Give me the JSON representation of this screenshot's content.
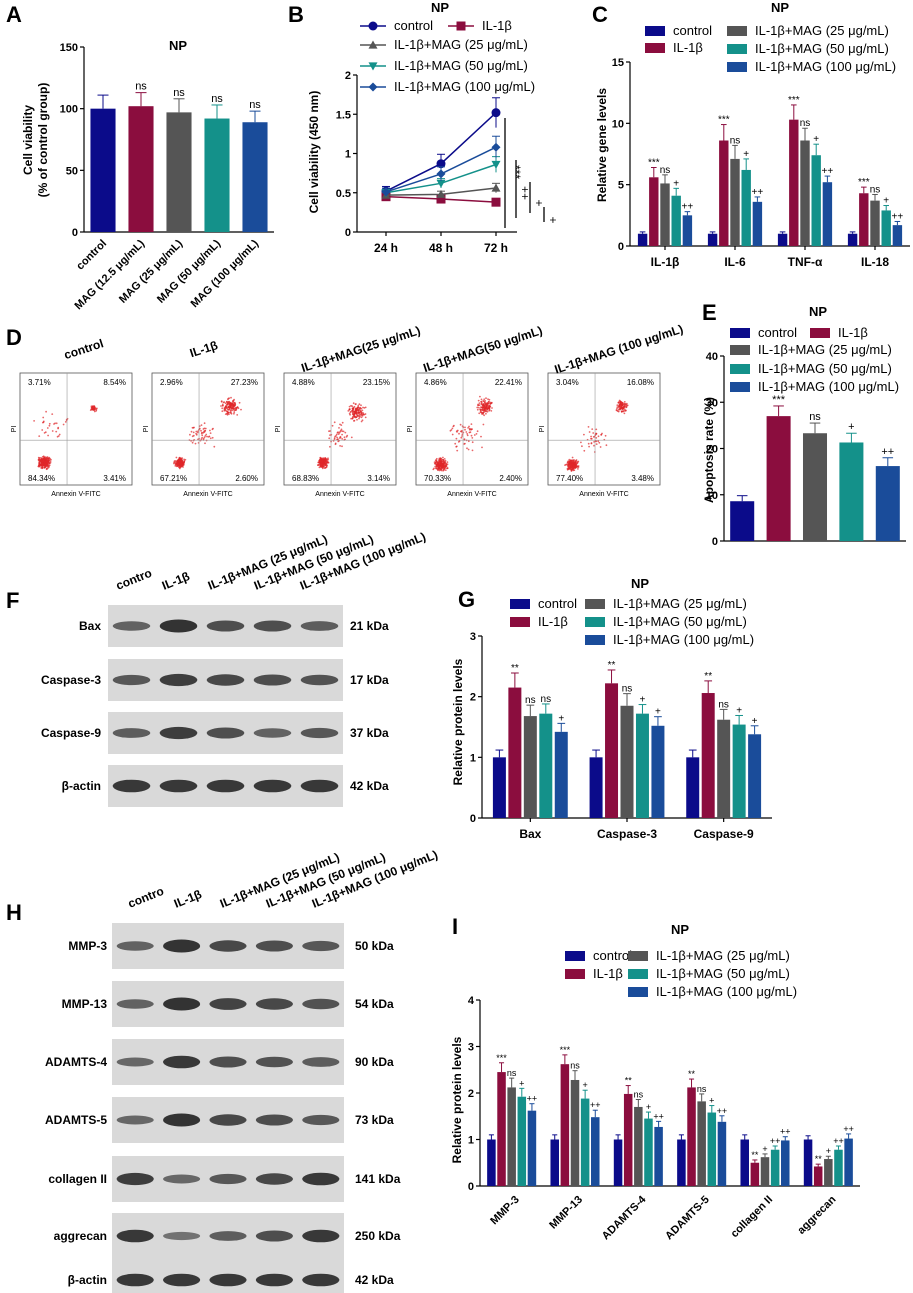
{
  "colors": {
    "control": "#0b0b8a",
    "il1b": "#8b0d3e",
    "mag25": "#555555",
    "mag50": "#14918a",
    "mag100": "#1a4c9a",
    "mag12_5": "#8b0d3e",
    "blot_bg": "#d9d9d9",
    "band": "#2a2a2a",
    "dot": "#e0262a"
  },
  "panels": {
    "A": {
      "letter": "A",
      "title": "NP"
    },
    "B": {
      "letter": "B",
      "title": "NP"
    },
    "C": {
      "letter": "C",
      "title": "NP"
    },
    "D": {
      "letter": "D"
    },
    "E": {
      "letter": "E",
      "title": "NP"
    },
    "F": {
      "letter": "F"
    },
    "G": {
      "letter": "G",
      "title": "NP"
    },
    "H": {
      "letter": "H"
    },
    "I": {
      "letter": "I",
      "title": "NP"
    }
  },
  "chart_data": [
    {
      "id": "A",
      "type": "bar",
      "title": "NP",
      "ylabel": "Cell viability (% of control group)",
      "ylabel_lines": [
        "Cell viability",
        "(% of control group)"
      ],
      "ylim": [
        0,
        150
      ],
      "yticks": [
        0,
        50,
        100,
        150
      ],
      "categories": [
        "control",
        "MAG (12.5 μg/mL)",
        "MAG (25 μg/mL)",
        "MAG (50 μg/mL)",
        "MAG (100 μg/mL)"
      ],
      "values": [
        100,
        102,
        97,
        92,
        89
      ],
      "errors": [
        11,
        11,
        11,
        11,
        9
      ],
      "annotations": [
        "",
        "ns",
        "ns",
        "ns",
        "ns"
      ]
    },
    {
      "id": "B",
      "type": "line",
      "title": "NP",
      "ylabel": "Cell viability (450 nm)",
      "ylim": [
        0,
        2.0
      ],
      "yticks": [
        0,
        0.5,
        1.0,
        1.5,
        2.0
      ],
      "x": [
        "24 h",
        "48 h",
        "72 h"
      ],
      "legend": [
        "control",
        "IL-1β",
        "IL-1β+MAG (25 μg/mL)",
        "IL-1β+MAG (50 μg/mL)",
        "IL-1β+MAG (100 μg/mL)"
      ],
      "series": [
        {
          "name": "control",
          "values": [
            0.52,
            0.87,
            1.52
          ],
          "errors": [
            0.06,
            0.12,
            0.19
          ]
        },
        {
          "name": "IL-1β",
          "values": [
            0.45,
            0.42,
            0.38
          ],
          "errors": [
            0.03,
            0.03,
            0.03
          ]
        },
        {
          "name": "IL-1β+MAG (25 μg/mL)",
          "values": [
            0.47,
            0.48,
            0.56
          ],
          "errors": [
            0.03,
            0.04,
            0.06
          ]
        },
        {
          "name": "IL-1β+MAG (50 μg/mL)",
          "values": [
            0.5,
            0.62,
            0.86
          ],
          "errors": [
            0.04,
            0.06,
            0.1
          ]
        },
        {
          "name": "IL-1β+MAG (100 μg/mL)",
          "values": [
            0.51,
            0.74,
            1.08
          ],
          "errors": [
            0.05,
            0.09,
            0.14
          ]
        }
      ],
      "significance": [
        "***",
        "++",
        "+",
        "+",
        "+"
      ]
    },
    {
      "id": "C",
      "type": "bar",
      "title": "NP",
      "ylabel": "Relative gene levels",
      "ylim": [
        0,
        15
      ],
      "yticks": [
        0,
        5,
        10,
        15
      ],
      "categories": [
        "IL-1β",
        "IL-6",
        "TNF-α",
        "IL-18"
      ],
      "legend": [
        "control",
        "IL-1β",
        "IL-1β+MAG (25 μg/mL)",
        "IL-1β+MAG (50 μg/mL)",
        "IL-1β+MAG (100 μg/mL)"
      ],
      "series": [
        {
          "name": "control",
          "values": [
            1,
            1,
            1,
            1
          ],
          "errors": [
            0.15,
            0.15,
            0.15,
            0.15
          ],
          "labels": [
            "",
            "",
            "",
            ""
          ]
        },
        {
          "name": "IL-1β",
          "values": [
            5.6,
            8.6,
            10.3,
            4.3
          ],
          "errors": [
            0.8,
            1.3,
            1.2,
            0.5
          ],
          "labels": [
            "***",
            "***",
            "***",
            "***"
          ]
        },
        {
          "name": "IL-1β+MAG (25 μg/mL)",
          "values": [
            5.1,
            7.1,
            8.6,
            3.7
          ],
          "errors": [
            0.7,
            1.1,
            1.0,
            0.5
          ],
          "labels": [
            "ns",
            "ns",
            "ns",
            "ns"
          ]
        },
        {
          "name": "IL-1β+MAG (50 μg/mL)",
          "values": [
            4.1,
            6.2,
            7.4,
            2.9
          ],
          "errors": [
            0.6,
            0.9,
            0.9,
            0.4
          ],
          "labels": [
            "+",
            "+",
            "+",
            "+"
          ]
        },
        {
          "name": "IL-1β+MAG (100 μg/mL)",
          "values": [
            2.5,
            3.6,
            5.2,
            1.7
          ],
          "errors": [
            0.3,
            0.4,
            0.5,
            0.3
          ],
          "labels": [
            "++",
            "++",
            "++",
            "++"
          ]
        }
      ]
    },
    {
      "id": "E",
      "type": "bar",
      "title": "NP",
      "ylabel": "Apoptosis rate (%)",
      "ylim": [
        0,
        40
      ],
      "yticks": [
        0,
        10,
        20,
        30,
        40
      ],
      "categories": [
        "control",
        "IL-1β",
        "IL-1β+MAG (25 μg/mL)",
        "IL-1β+MAG (50 μg/mL)",
        "IL-1β+MAG (100 μg/mL)"
      ],
      "legend": [
        "control",
        "IL-1β",
        "IL-1β+MAG (25 μg/mL)",
        "IL-1β+MAG (50 μg/mL)",
        "IL-1β+MAG (100 μg/mL)"
      ],
      "values": [
        8.6,
        27,
        23.3,
        21.3,
        16.2
      ],
      "errors": [
        1.2,
        2.2,
        2.2,
        2.0,
        1.8
      ],
      "annotations": [
        "",
        "***",
        "ns",
        "+",
        "++"
      ]
    },
    {
      "id": "G",
      "type": "bar",
      "title": "NP",
      "ylabel": "Relative protein levels",
      "ylim": [
        0,
        3
      ],
      "yticks": [
        0,
        1,
        2,
        3
      ],
      "categories": [
        "Bax",
        "Caspase-3",
        "Caspase-9"
      ],
      "legend": [
        "control",
        "IL-1β",
        "IL-1β+MAG (25 μg/mL)",
        "IL-1β+MAG (50 μg/mL)",
        "IL-1β+MAG (100 μg/mL)"
      ],
      "series": [
        {
          "name": "control",
          "values": [
            1,
            1,
            1
          ],
          "errors": [
            0.12,
            0.12,
            0.12
          ],
          "labels": [
            "",
            "",
            ""
          ]
        },
        {
          "name": "IL-1β",
          "values": [
            2.15,
            2.22,
            2.06
          ],
          "errors": [
            0.24,
            0.22,
            0.2
          ],
          "labels": [
            "**",
            "**",
            "**"
          ]
        },
        {
          "name": "IL-1β+MAG (25 μg/mL)",
          "values": [
            1.68,
            1.85,
            1.62
          ],
          "errors": [
            0.18,
            0.2,
            0.17
          ],
          "labels": [
            "ns",
            "ns",
            "ns"
          ]
        },
        {
          "name": "IL-1β+MAG (50 μg/mL)",
          "values": [
            1.72,
            1.72,
            1.54
          ],
          "errors": [
            0.16,
            0.15,
            0.15
          ],
          "labels": [
            "ns",
            "+",
            "+"
          ]
        },
        {
          "name": "IL-1β+MAG (100 μg/mL)",
          "values": [
            1.42,
            1.52,
            1.38
          ],
          "errors": [
            0.14,
            0.15,
            0.14
          ],
          "labels": [
            "+",
            "+",
            "+"
          ]
        }
      ]
    },
    {
      "id": "I",
      "type": "bar",
      "title": "NP",
      "ylabel": "Relative protein levels",
      "ylim": [
        0,
        4
      ],
      "yticks": [
        0,
        1,
        2,
        3,
        4
      ],
      "categories": [
        "MMP-3",
        "MMP-13",
        "ADAMTS-4",
        "ADAMTS-5",
        "collagen II",
        "aggrecan"
      ],
      "legend": [
        "control",
        "IL-1β",
        "IL-1β+MAG (25 μg/mL)",
        "IL-1β+MAG (50 μg/mL)",
        "IL-1β+MAG (100 μg/mL)"
      ],
      "series": [
        {
          "name": "control",
          "values": [
            1,
            1,
            1,
            1,
            1,
            1
          ],
          "errors": [
            0.1,
            0.1,
            0.1,
            0.1,
            0.1,
            0.08
          ],
          "labels": [
            "",
            "",
            "",
            "",
            "",
            ""
          ]
        },
        {
          "name": "IL-1β",
          "values": [
            2.45,
            2.62,
            1.98,
            2.12,
            0.5,
            0.42
          ],
          "errors": [
            0.2,
            0.2,
            0.18,
            0.18,
            0.06,
            0.05
          ],
          "labels": [
            "***",
            "***",
            "**",
            "**",
            "**",
            "**"
          ]
        },
        {
          "name": "IL-1β+MAG (25 μg/mL)",
          "values": [
            2.12,
            2.28,
            1.7,
            1.82,
            0.62,
            0.58
          ],
          "errors": [
            0.2,
            0.2,
            0.16,
            0.16,
            0.07,
            0.06
          ],
          "labels": [
            "ns",
            "ns",
            "ns",
            "ns",
            "+",
            "+"
          ]
        },
        {
          "name": "IL-1β+MAG (50 μg/mL)",
          "values": [
            1.92,
            1.88,
            1.45,
            1.58,
            0.78,
            0.78
          ],
          "errors": [
            0.18,
            0.18,
            0.14,
            0.15,
            0.08,
            0.08
          ],
          "labels": [
            "+",
            "+",
            "+",
            "+",
            "++",
            "++"
          ]
        },
        {
          "name": "IL-1β+MAG (100 μg/mL)",
          "values": [
            1.62,
            1.48,
            1.27,
            1.38,
            0.98,
            1.02
          ],
          "errors": [
            0.15,
            0.15,
            0.12,
            0.13,
            0.08,
            0.1
          ],
          "labels": [
            "++",
            "++",
            "++",
            "++",
            "++",
            "++"
          ]
        }
      ]
    }
  ],
  "flow_cytometry": {
    "x_axis_label": "Annexin V-FITC",
    "y_axis_label": "PI",
    "plots": [
      {
        "title": "control",
        "ul": "3.71%",
        "ur": "8.54%",
        "ll": "84.34%",
        "lr": "3.41%"
      },
      {
        "title": "IL-1β",
        "ul": "2.96%",
        "ur": "27.23%",
        "ll": "67.21%",
        "lr": "2.60%"
      },
      {
        "title": "IL-1β+MAG(25 μg/mL)",
        "ul": "4.88%",
        "ur": "23.15%",
        "ll": "68.83%",
        "lr": "3.14%"
      },
      {
        "title": "IL-1β+MAG(50 μg/mL)",
        "ul": "4.86%",
        "ur": "22.41%",
        "ll": "70.33%",
        "lr": "2.40%"
      },
      {
        "title": "IL-1β+MAG (100 μg/mL)",
        "ul": "3.04%",
        "ur": "16.08%",
        "ll": "77.40%",
        "lr": "3.48%"
      }
    ]
  },
  "western_F": {
    "lanes": [
      "contro",
      "IL-1β",
      "IL-1β+MAG (25 μg/mL)",
      "IL-1β+MAG (50 μg/mL)",
      "IL-1β+MAG (100 μg/mL)"
    ],
    "rows": [
      {
        "protein": "Bax",
        "kda": "21 kDa",
        "intensity": [
          0.55,
          1.0,
          0.75,
          0.75,
          0.6
        ]
      },
      {
        "protein": "Caspase-3",
        "kda": "17  kDa",
        "intensity": [
          0.65,
          0.9,
          0.8,
          0.75,
          0.7
        ]
      },
      {
        "protein": "Caspase-9",
        "kda": "37 kDa",
        "intensity": [
          0.6,
          0.9,
          0.75,
          0.55,
          0.65
        ]
      },
      {
        "protein": "β-actin",
        "kda": "42 kDa",
        "intensity": [
          0.95,
          0.95,
          0.95,
          0.95,
          0.95
        ]
      }
    ]
  },
  "western_H": {
    "lanes": [
      "contro",
      "IL-1β",
      "IL-1β+MAG (25 μg/mL)",
      "IL-1β+MAG (50 μg/mL)",
      "IL-1β+MAG (100 μg/mL)"
    ],
    "rows": [
      {
        "protein": "MMP-3",
        "kda": "50 kDa",
        "intensity": [
          0.55,
          1.0,
          0.8,
          0.75,
          0.65
        ]
      },
      {
        "protein": "MMP-13",
        "kda": "54 kDa",
        "intensity": [
          0.55,
          1.0,
          0.85,
          0.8,
          0.7
        ]
      },
      {
        "protein": "ADAMTS-4",
        "kda": "90 kDa",
        "intensity": [
          0.5,
          0.95,
          0.75,
          0.7,
          0.6
        ]
      },
      {
        "protein": "ADAMTS-5",
        "kda": "73 kDa",
        "intensity": [
          0.5,
          1.0,
          0.8,
          0.75,
          0.65
        ]
      },
      {
        "protein": "collagen II",
        "kda": "141 kDa",
        "intensity": [
          0.9,
          0.5,
          0.65,
          0.8,
          0.95
        ]
      },
      {
        "protein": "aggrecan",
        "kda": "250 kDa",
        "intensity": [
          0.95,
          0.4,
          0.6,
          0.75,
          0.95
        ]
      },
      {
        "protein": "β-actin",
        "kda": "42 kDa",
        "intensity": [
          0.95,
          0.95,
          0.95,
          0.95,
          0.95
        ]
      }
    ]
  }
}
